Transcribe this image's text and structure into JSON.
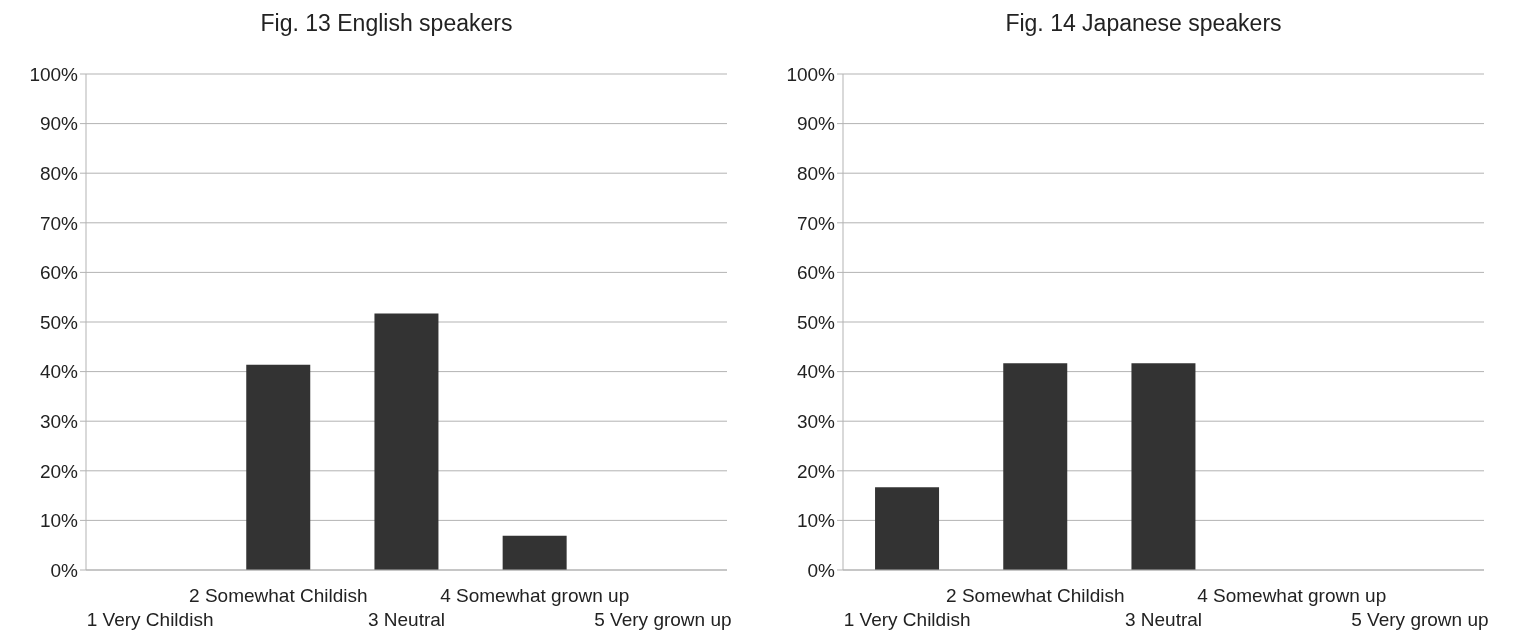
{
  "chart_data": [
    {
      "type": "bar",
      "title": "Fig. 13 English speakers",
      "categories": [
        "1 Very Childish",
        "2 Somewhat Childish",
        "3 Neutral",
        "4 Somewhat grown up",
        "5 Very grown up"
      ],
      "values": [
        0,
        41.4,
        51.7,
        6.9,
        0
      ],
      "color": "#333333",
      "ylim": [
        0,
        100
      ],
      "yticks": [
        {
          "value": 0,
          "label": "0%"
        },
        {
          "value": 10,
          "label": "10%"
        },
        {
          "value": 20,
          "label": "20%"
        },
        {
          "value": 30,
          "label": "30%"
        },
        {
          "value": 40,
          "label": "40%"
        },
        {
          "value": 50,
          "label": "50%"
        },
        {
          "value": 60,
          "label": "60%"
        },
        {
          "value": 70,
          "label": "70%"
        },
        {
          "value": 80,
          "label": "80%"
        },
        {
          "value": 90,
          "label": "90%"
        },
        {
          "value": 100,
          "label": "100%"
        }
      ],
      "grid": "y",
      "legend": false
    },
    {
      "type": "bar",
      "title": "Fig. 14 Japanese speakers",
      "categories": [
        "1 Very Childish",
        "2 Somewhat Childish",
        "3 Neutral",
        "4 Somewhat grown up",
        "5 Very grown up"
      ],
      "values": [
        16.7,
        41.7,
        41.7,
        0,
        0
      ],
      "color": "#333333",
      "ylim": [
        0,
        100
      ],
      "yticks": [
        {
          "value": 0,
          "label": "0%"
        },
        {
          "value": 10,
          "label": "10%"
        },
        {
          "value": 20,
          "label": "20%"
        },
        {
          "value": 30,
          "label": "30%"
        },
        {
          "value": 40,
          "label": "40%"
        },
        {
          "value": 50,
          "label": "50%"
        },
        {
          "value": 60,
          "label": "60%"
        },
        {
          "value": 70,
          "label": "70%"
        },
        {
          "value": 80,
          "label": "80%"
        },
        {
          "value": 90,
          "label": "90%"
        },
        {
          "value": 100,
          "label": "100%"
        }
      ],
      "grid": "y",
      "legend": false
    }
  ]
}
